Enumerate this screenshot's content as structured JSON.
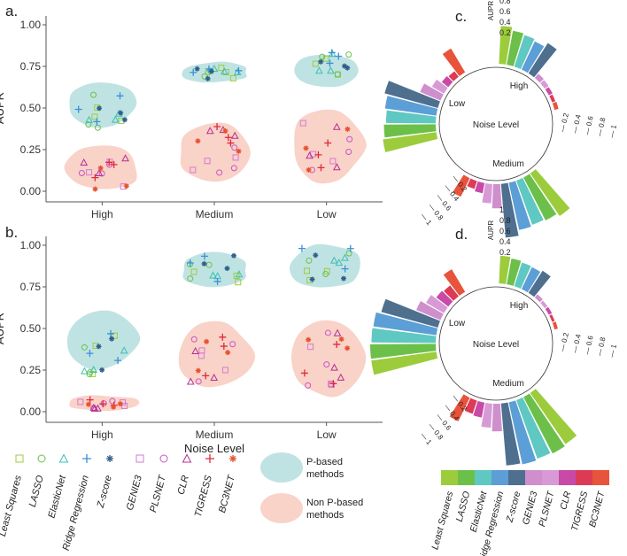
{
  "figure_title": "",
  "colors": {
    "least_squares": "#9ccc3c",
    "lasso": "#6cc04a",
    "elasticnet": "#3dbfb4",
    "ridge": "#3b8fd8",
    "zscore": "#2f5f8a",
    "genie3": "#d67ad0",
    "plsnet": "#c955c4",
    "clr": "#b52f93",
    "tigress": "#dd2a3c",
    "bc3net": "#e8512e",
    "p_blob": "#bfe3e2",
    "np_blob": "#f9d2c8"
  },
  "chart_data": [
    {
      "panel": "a.",
      "type": "scatter",
      "ylabel": "AUPR",
      "xlabel": "",
      "ylim": [
        0,
        1
      ],
      "yticks": [
        "0.00",
        "0.25",
        "0.50",
        "0.75",
        "1.00"
      ],
      "categories": [
        "High",
        "Medium",
        "Low"
      ],
      "p_based_range": [
        [
          0.38,
          0.67
        ],
        [
          0.65,
          0.78
        ],
        [
          0.62,
          0.83
        ]
      ],
      "non_p_range": [
        [
          0.0,
          0.29
        ],
        [
          0.04,
          0.43
        ],
        [
          0.03,
          0.52
        ]
      ],
      "p_based_center": [
        0.48,
        0.72,
        0.76
      ],
      "non_p_center": [
        0.12,
        0.25,
        0.28
      ]
    },
    {
      "panel": "b.",
      "type": "scatter",
      "ylabel": "AUPR",
      "xlabel": "Noise Level",
      "ylim": [
        0,
        1
      ],
      "yticks": [
        "0.00",
        "0.25",
        "0.50",
        "0.75",
        "1.00"
      ],
      "categories": [
        "High",
        "Medium",
        "Low"
      ],
      "p_based_range": [
        [
          0.25,
          0.62
        ],
        [
          0.74,
          0.96
        ],
        [
          0.73,
          1.01
        ]
      ],
      "non_p_range": [
        [
          0.0,
          0.1
        ],
        [
          0.14,
          0.55
        ],
        [
          0.08,
          0.58
        ]
      ],
      "p_based_center": [
        0.36,
        0.86,
        0.88
      ],
      "non_p_center": [
        0.05,
        0.33,
        0.32
      ]
    },
    {
      "panel": "c.",
      "type": "radial-bar",
      "axis_label": "AUPR",
      "scale_ticks": [
        "1",
        "0.8",
        "0.6",
        "0.4",
        "0.2"
      ],
      "ring_ticks": [
        "0.2",
        "0.4",
        "0.6",
        "0.8",
        "1"
      ],
      "center_label": "Noise Level",
      "groups": [
        {
          "name": "High",
          "values": [
            0.55,
            0.5,
            0.48,
            0.45,
            0.52,
            0.08,
            0.07,
            0.06,
            0.05,
            0.06
          ]
        },
        {
          "name": "Medium",
          "values": [
            0.75,
            0.7,
            0.68,
            0.7,
            0.78,
            0.35,
            0.28,
            0.15,
            0.12,
            0.3
          ]
        },
        {
          "name": "Low",
          "values": [
            0.78,
            0.75,
            0.72,
            0.75,
            0.8,
            0.32,
            0.2,
            0.12,
            0.1,
            0.4
          ]
        }
      ]
    },
    {
      "panel": "d.",
      "type": "radial-bar",
      "axis_label": "AUPR",
      "scale_ticks": [
        "1",
        "0.8",
        "0.6",
        "0.4",
        "0.2"
      ],
      "ring_ticks": [
        "0.2",
        "0.4",
        "0.6",
        "0.8",
        "1"
      ],
      "center_label": "Noise Level",
      "groups": [
        {
          "name": "High",
          "values": [
            0.4,
            0.38,
            0.36,
            0.35,
            0.38,
            0.06,
            0.05,
            0.05,
            0.04,
            0.05
          ]
        },
        {
          "name": "Medium",
          "values": [
            0.9,
            0.92,
            0.9,
            0.92,
            0.9,
            0.4,
            0.35,
            0.22,
            0.2,
            0.38
          ]
        },
        {
          "name": "Low",
          "values": [
            0.95,
            0.95,
            0.93,
            0.92,
            0.85,
            0.38,
            0.3,
            0.22,
            0.2,
            0.38
          ]
        }
      ]
    }
  ],
  "legend_left": {
    "methods": [
      {
        "label": "Least Squares",
        "symbol": "square",
        "color_key": "least_squares"
      },
      {
        "label": "LASSO",
        "symbol": "circle",
        "color_key": "lasso"
      },
      {
        "label": "ElasticNet",
        "symbol": "triangle",
        "color_key": "elasticnet"
      },
      {
        "label": "Ridge Regression",
        "symbol": "plus",
        "color_key": "ridge"
      },
      {
        "label": "Z-score",
        "symbol": "star",
        "color_key": "zscore"
      },
      {
        "label": "GENIE3",
        "symbol": "square",
        "color_key": "genie3"
      },
      {
        "label": "PLSNET",
        "symbol": "circle",
        "color_key": "plsnet"
      },
      {
        "label": "CLR",
        "symbol": "triangle",
        "color_key": "clr"
      },
      {
        "label": "TIGRESS",
        "symbol": "plus",
        "color_key": "tigress"
      },
      {
        "label": "BC3NET",
        "symbol": "star",
        "color_key": "bc3net"
      }
    ],
    "groups": [
      {
        "label_line1": "P-based",
        "label_line2": "methods",
        "color_key": "p_blob"
      },
      {
        "label_line1": "Non P-based",
        "label_line2": "methods",
        "color_key": "np_blob"
      }
    ]
  },
  "legend_right": {
    "methods": [
      "Least Squares",
      "LASSO",
      "ElasticNet",
      "Ridge Regression",
      "Z-score",
      "GENIE3",
      "PLSNET",
      "CLR",
      "TIGRESS",
      "BC3NET"
    ]
  }
}
